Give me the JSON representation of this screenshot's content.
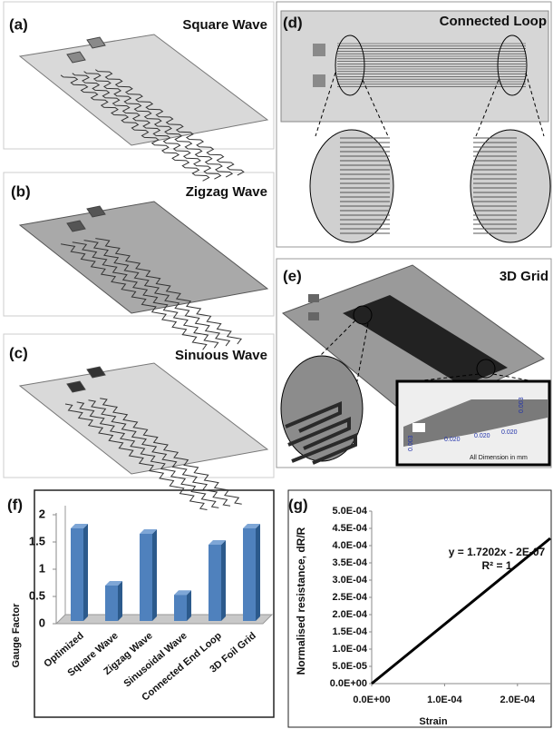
{
  "panels": [
    {
      "label": "(a)",
      "title": "Square Wave"
    },
    {
      "label": "(b)",
      "title": "Zigzag Wave"
    },
    {
      "label": "(c)",
      "title": "Sinuous Wave"
    },
    {
      "label": "(d)",
      "title": "Connected Loop"
    },
    {
      "label": "(e)",
      "title": "3D Grid"
    }
  ],
  "inset": {
    "dimensions": [
      "0.003",
      "0.020",
      "0.020",
      "0.020",
      "0.003"
    ],
    "note": "All Dimension in mm"
  },
  "chart_data": [
    {
      "type": "bar",
      "label": "(f)",
      "y_label": "Gauge Factor",
      "categories": [
        "Optimized",
        "Square Wave",
        "Zigzag Wave",
        "Sinusoidal Wave",
        "Connected End Loop",
        "3D Foil Grid"
      ],
      "values": [
        1.75,
        0.7,
        1.65,
        0.53,
        1.45,
        1.75
      ],
      "color": "#4f81bd",
      "ylim": [
        0,
        2
      ],
      "yticks": [
        0,
        0.5,
        1,
        1.5,
        2
      ],
      "grid": false
    },
    {
      "type": "line",
      "label": "(g)",
      "x_label": "Strain",
      "y_label": "Normalised resistance, dR/R",
      "x": [
        0,
        0.000245
      ],
      "values": [
        0,
        0.000421
      ],
      "color": "#000000",
      "xlim": [
        0,
        0.000245
      ],
      "ylim": [
        0,
        0.0005
      ],
      "xticks": [
        {
          "value": 0,
          "label": "0.0E+00"
        },
        {
          "value": 0.0001,
          "label": "1.0E-04"
        },
        {
          "value": 0.0002,
          "label": "2.0E-04"
        }
      ],
      "yticks": [
        {
          "value": 0,
          "label": "0.0E+00"
        },
        {
          "value": 5e-05,
          "label": "5.0E-05"
        },
        {
          "value": 0.0001,
          "label": "1.0E-04"
        },
        {
          "value": 0.00015,
          "label": "1.5E-04"
        },
        {
          "value": 0.0002,
          "label": "2.0E-04"
        },
        {
          "value": 0.00025,
          "label": "2.5E-04"
        },
        {
          "value": 0.0003,
          "label": "3.0E-04"
        },
        {
          "value": 0.00035,
          "label": "3.5E-04"
        },
        {
          "value": 0.0004,
          "label": "4.0E-04"
        },
        {
          "value": 0.00045,
          "label": "4.5E-04"
        },
        {
          "value": 0.0005,
          "label": "5.0E-04"
        }
      ],
      "annotations": [
        "y = 1.7202x - 2E-07",
        "R² = 1"
      ],
      "grid": false
    }
  ]
}
